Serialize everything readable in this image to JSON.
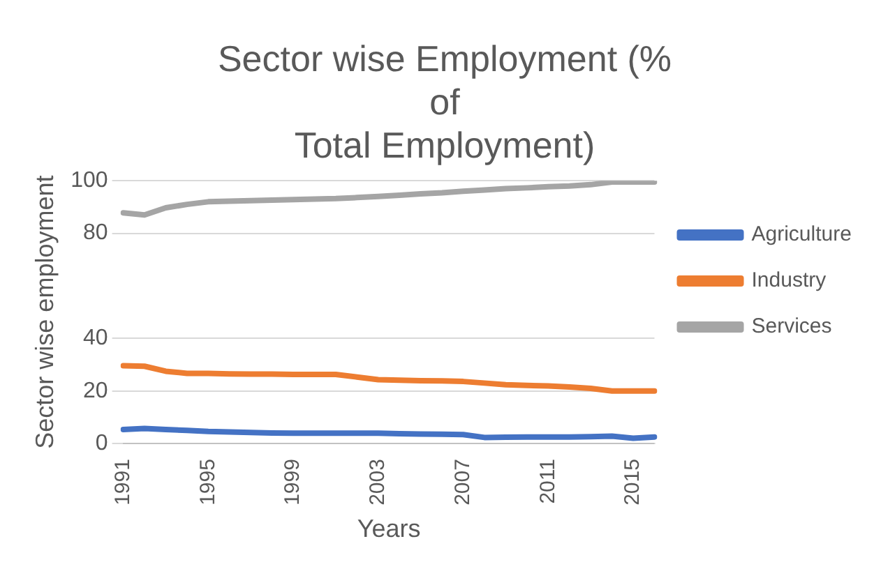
{
  "chart_data": {
    "type": "line",
    "title": [
      "Sector wise Employment (%",
      "of",
      "Total Employment)"
    ],
    "xlabel": "Years",
    "ylabel": "Sector wise employment",
    "categories": [
      "1991",
      null,
      null,
      null,
      "1995",
      null,
      null,
      null,
      "1999",
      null,
      null,
      null,
      "2003",
      null,
      null,
      null,
      "2007",
      null,
      null,
      null,
      "2011",
      null,
      null,
      null,
      "2015",
      null
    ],
    "series": [
      {
        "name": "Agriculture",
        "color": "#4472c4",
        "values": [
          5.3,
          5.7,
          5.3,
          5,
          4.6,
          4.4,
          4.2,
          4.0,
          3.9,
          3.9,
          3.9,
          3.9,
          3.9,
          3.7,
          3.6,
          3.5,
          3.4,
          2.3,
          2.4,
          2.5,
          2.5,
          2.5,
          2.6,
          2.8,
          2.0,
          2.5
        ]
      },
      {
        "name": "Industry",
        "color": "#ed7d31",
        "values": [
          29.6,
          29.4,
          27.5,
          26.7,
          26.7,
          26.5,
          26.4,
          26.4,
          26.3,
          26.3,
          26.3,
          25.3,
          24.3,
          24.1,
          23.9,
          23.8,
          23.6,
          23.0,
          22.4,
          22.1,
          21.9,
          21.5,
          21,
          20,
          20,
          20
        ]
      },
      {
        "name": "Services",
        "color": "#a5a5a5",
        "values": [
          87.8,
          87,
          89.7,
          91,
          92,
          92.2,
          92.4,
          92.6,
          92.8,
          93,
          93.2,
          93.6,
          94,
          94.5,
          95,
          95.4,
          96,
          96.5,
          97,
          97.3,
          97.7,
          98,
          98.5,
          99.5,
          99.5,
          99.5
        ]
      }
    ],
    "ylim": [
      0,
      100
    ],
    "yticks": [
      0,
      20,
      40,
      80,
      100
    ],
    "grid": "y",
    "legend": "right",
    "marker": "none",
    "line_style": "solid"
  }
}
